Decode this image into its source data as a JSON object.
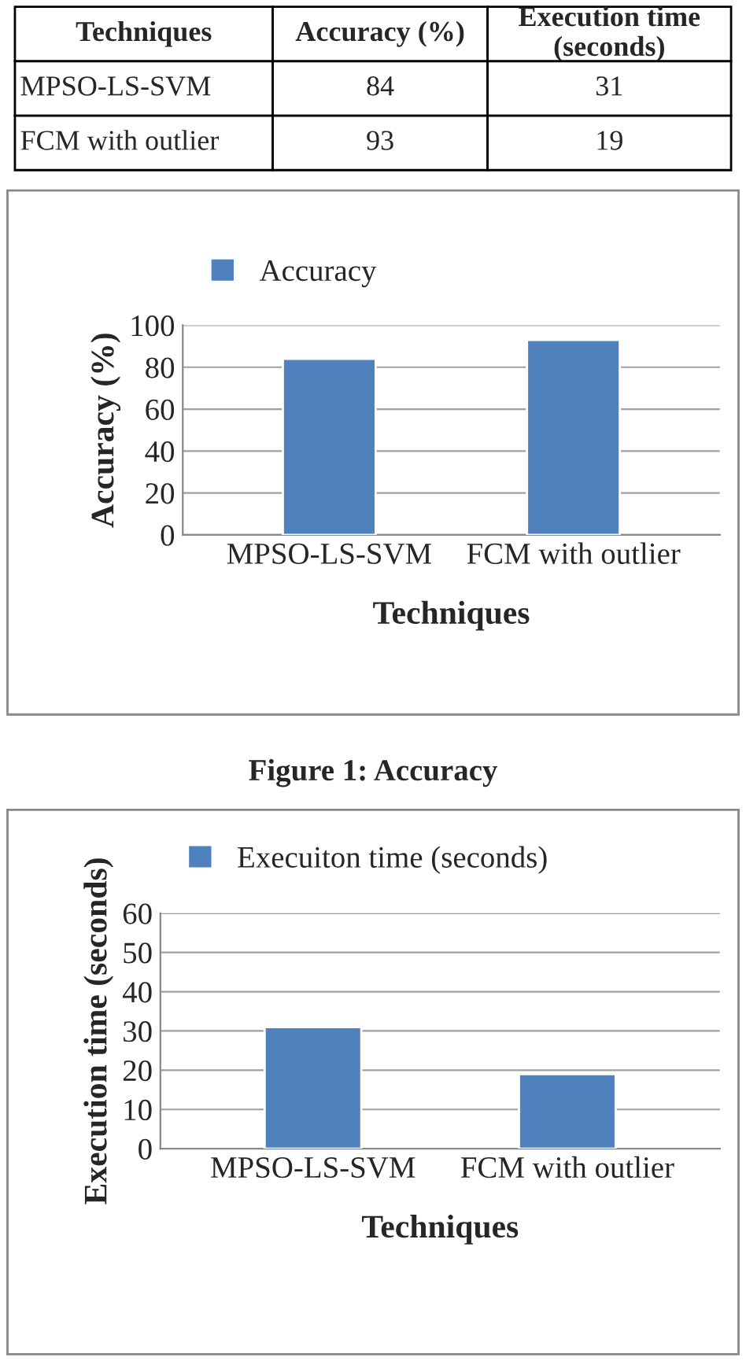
{
  "chart_data": [
    {
      "type": "other",
      "categories": [
        "Techniques",
        "Accuracy (%)",
        "Execution time\n(seconds)"
      ],
      "annotations": [
        "MPSO-LS-SVM",
        "84",
        "31",
        "FCM with outlier",
        "93",
        "19"
      ]
    },
    {
      "type": "bar",
      "categories": [
        "MPSO-LS-SVM",
        "FCM with outlier"
      ],
      "xlabel": "Techniques",
      "ylabel": "Accuracy (%)",
      "series": [
        {
          "name": "Accuracy",
          "color": "#4f81bd",
          "values": [
            84,
            93
          ]
        }
      ],
      "ylim": [
        0,
        100
      ],
      "yticks": [
        0,
        20,
        40,
        60,
        80,
        100
      ],
      "grid": "y",
      "legend": "top",
      "annotations": [
        "Figure 1: Accuracy"
      ]
    },
    {
      "type": "bar",
      "categories": [
        "MPSO-LS-SVM",
        "FCM with outlier"
      ],
      "xlabel": "Techniques",
      "ylabel": "Execution time (seconds)",
      "series": [
        {
          "name": "Execuiton time (seconds)",
          "color": "#4f81bd",
          "values": [
            31,
            19
          ]
        }
      ],
      "ylim": [
        0,
        60
      ],
      "yticks": [
        0,
        10,
        20,
        30,
        40,
        50,
        60
      ],
      "grid": "y",
      "legend": "top"
    }
  ]
}
